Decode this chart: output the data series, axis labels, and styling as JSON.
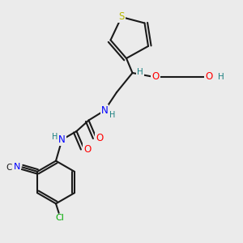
{
  "bg_color": "#ebebeb",
  "bond_color": "#1a1a1a",
  "atom_colors": {
    "S": "#b8b800",
    "N": "#0000ff",
    "O": "#ff0000",
    "Cl": "#00aa00",
    "C": "#1a1a1a",
    "H": "#1a8080",
    "CN_N": "#0000ff",
    "CN_C": "#1a1a1a"
  },
  "figsize": [
    3.0,
    3.0
  ],
  "dpi": 100
}
